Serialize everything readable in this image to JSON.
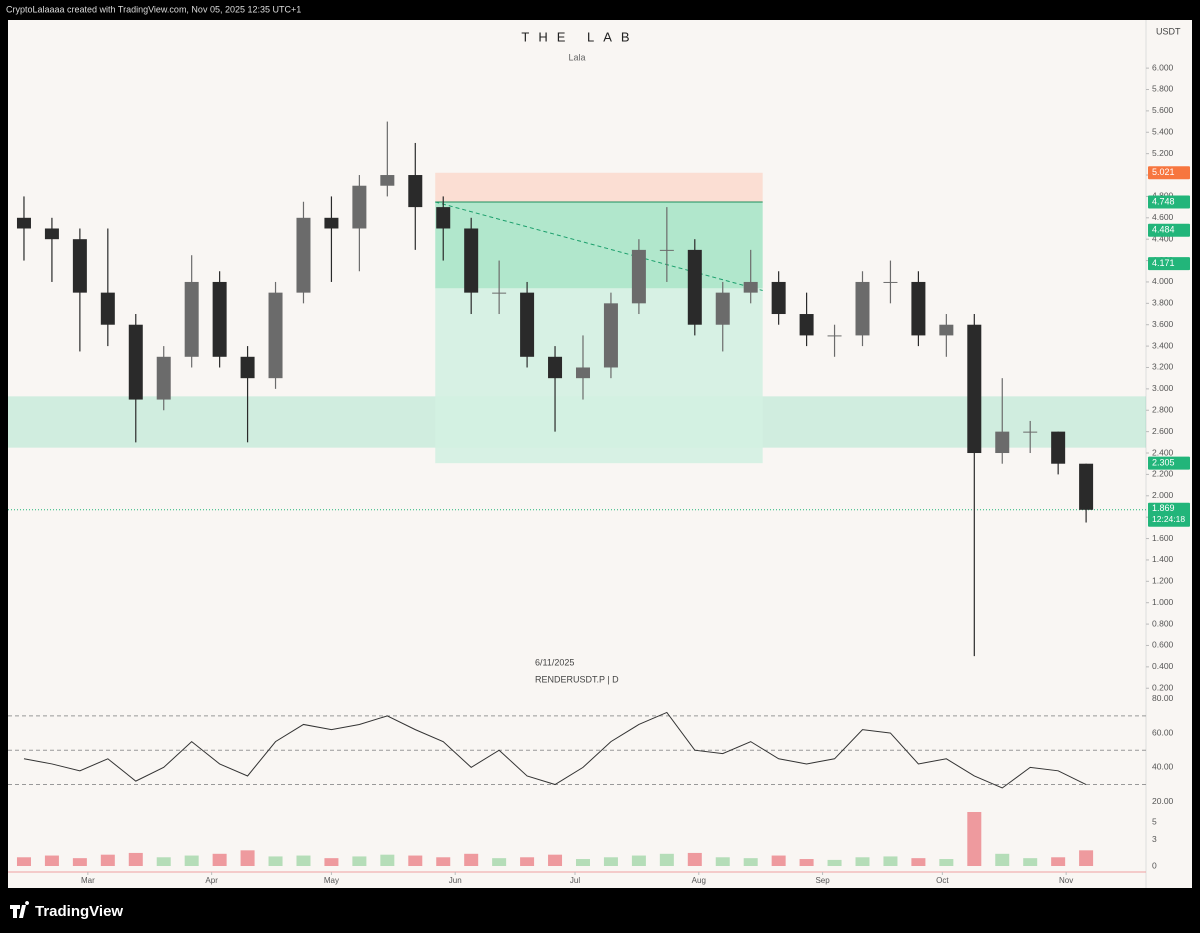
{
  "chart_data": {
    "type": "candlestick",
    "header": "CryptoLalaaaa created with TradingView.com, Nov 05, 2025 12:35 UTC+1",
    "title": "THE LAB",
    "subtitle": "Lala",
    "date_label": "6/11/2025",
    "symbol_label": "RENDERUSDT.P | D",
    "currency": "USDT",
    "brand": "TradingView",
    "x": [
      3,
      10,
      17,
      24,
      31,
      38,
      45,
      52,
      59,
      66,
      73,
      80,
      87,
      94,
      101,
      108,
      115,
      122,
      129,
      136,
      143,
      150,
      157,
      164,
      171,
      178,
      185,
      192,
      199,
      206,
      213,
      220,
      227,
      234,
      241,
      248,
      255,
      262,
      269
    ],
    "open": [
      4.6,
      4.5,
      4.4,
      3.9,
      3.6,
      2.9,
      3.3,
      4.0,
      3.3,
      3.1,
      3.9,
      4.6,
      4.5,
      4.9,
      5.0,
      4.7,
      4.5,
      3.9,
      3.9,
      3.3,
      3.1,
      3.2,
      3.8,
      4.3,
      4.3,
      3.6,
      3.9,
      4.0,
      3.7,
      3.5,
      3.5,
      4.0,
      4.0,
      3.5,
      3.6,
      2.4,
      2.6,
      2.6,
      2.3
    ],
    "high": [
      4.8,
      4.6,
      4.5,
      4.5,
      3.7,
      3.4,
      4.25,
      4.1,
      3.4,
      4.0,
      4.75,
      4.8,
      5.0,
      5.5,
      5.3,
      4.8,
      4.6,
      4.2,
      4.0,
      3.4,
      3.5,
      3.9,
      4.4,
      4.7,
      4.4,
      4.0,
      4.3,
      4.1,
      3.9,
      3.6,
      4.1,
      4.2,
      4.1,
      3.7,
      3.7,
      3.1,
      2.7,
      2.6,
      2.3
    ],
    "low": [
      4.2,
      4.0,
      3.35,
      3.4,
      2.5,
      2.8,
      3.2,
      3.2,
      2.5,
      3.0,
      3.8,
      4.0,
      4.1,
      4.8,
      4.3,
      4.2,
      3.7,
      3.7,
      3.2,
      2.6,
      2.9,
      3.1,
      3.7,
      4.0,
      3.5,
      3.35,
      3.8,
      3.6,
      3.4,
      3.3,
      3.4,
      3.8,
      3.4,
      3.3,
      0.5,
      2.3,
      2.4,
      2.2,
      1.75
    ],
    "close": [
      4.5,
      4.4,
      3.9,
      3.6,
      2.9,
      3.3,
      4.0,
      3.3,
      3.1,
      3.9,
      4.6,
      4.5,
      4.9,
      5.0,
      4.7,
      4.5,
      3.9,
      3.9,
      3.3,
      3.1,
      3.2,
      3.8,
      4.3,
      4.3,
      3.6,
      3.9,
      4.0,
      3.7,
      3.5,
      3.5,
      4.0,
      4.0,
      3.5,
      3.6,
      2.4,
      2.6,
      2.6,
      2.3,
      1.869
    ],
    "up_color": "#6b6b6b",
    "down_color": "#2a2a2a",
    "xlim": [
      -1,
      284
    ],
    "xticks": [
      {
        "value": 19,
        "label": "Mar"
      },
      {
        "value": 50,
        "label": "Apr"
      },
      {
        "value": 80,
        "label": "May"
      },
      {
        "value": 111,
        "label": "Jun"
      },
      {
        "value": 141,
        "label": "Jul"
      },
      {
        "value": 172,
        "label": "Aug"
      },
      {
        "value": 203,
        "label": "Sep"
      },
      {
        "value": 233,
        "label": "Oct"
      },
      {
        "value": 264,
        "label": "Nov"
      }
    ],
    "ylim": [
      0.09,
      6.45
    ],
    "yticks": [
      {
        "value": 0.2,
        "label": "0.200"
      },
      {
        "value": 0.4,
        "label": "0.400"
      },
      {
        "value": 0.6,
        "label": "0.600"
      },
      {
        "value": 0.8,
        "label": "0.800"
      },
      {
        "value": 1.0,
        "label": "1.000"
      },
      {
        "value": 1.2,
        "label": "1.200"
      },
      {
        "value": 1.4,
        "label": "1.400"
      },
      {
        "value": 1.6,
        "label": "1.600"
      },
      {
        "value": 1.8,
        "label": "1.800"
      },
      {
        "value": 2.0,
        "label": "2.000"
      },
      {
        "value": 2.2,
        "label": "2.200"
      },
      {
        "value": 2.4,
        "label": "2.400"
      },
      {
        "value": 2.6,
        "label": "2.600"
      },
      {
        "value": 2.8,
        "label": "2.800"
      },
      {
        "value": 3.0,
        "label": "3.000"
      },
      {
        "value": 3.2,
        "label": "3.200"
      },
      {
        "value": 3.4,
        "label": "3.400"
      },
      {
        "value": 3.6,
        "label": "3.600"
      },
      {
        "value": 3.8,
        "label": "3.800"
      },
      {
        "value": 4.0,
        "label": "4.000"
      },
      {
        "value": 4.2,
        "label": "4.200"
      },
      {
        "value": 4.4,
        "label": "4.400"
      },
      {
        "value": 4.6,
        "label": "4.600"
      },
      {
        "value": 4.8,
        "label": "4.800"
      },
      {
        "value": 5.0,
        "label": "5.000"
      },
      {
        "value": 5.2,
        "label": "5.200"
      },
      {
        "value": 5.4,
        "label": "5.400"
      },
      {
        "value": 5.6,
        "label": "5.600"
      },
      {
        "value": 5.8,
        "label": "5.800"
      },
      {
        "value": 6.0,
        "label": "6.000"
      }
    ],
    "zones": [
      {
        "low": 2.45,
        "high": 2.93,
        "color": "#2ecc8f"
      }
    ],
    "position": {
      "start": 106,
      "end": 188,
      "stop": 5.021,
      "entry": 4.748,
      "reached": 3.94,
      "target": 2.305,
      "end_price": 3.92,
      "stop_color": "#fcd9cc",
      "profit_color": "#a8e6c8",
      "target_color": "#d3f1e2"
    },
    "price_labels": [
      {
        "value": 5.021,
        "color": "#f7763f"
      },
      {
        "value": 4.748,
        "color": "#22b57a"
      },
      {
        "value": 4.484,
        "color": "#22b57a"
      },
      {
        "value": 4.171,
        "color": "#22b57a"
      },
      {
        "value": 2.305,
        "color": "#22b57a"
      }
    ],
    "last_price": {
      "value": 1.869,
      "countdown": "12:24:18",
      "color": "#22b57a"
    },
    "rsi": {
      "values": [
        45,
        42,
        38,
        45,
        32,
        40,
        55,
        42,
        35,
        55,
        65,
        62,
        65,
        70,
        62,
        55,
        40,
        50,
        35,
        30,
        40,
        55,
        65,
        72,
        50,
        48,
        55,
        45,
        42,
        45,
        62,
        60,
        42,
        45,
        35,
        28,
        40,
        38,
        30
      ],
      "color": "#333333",
      "ylim": [
        14,
        81
      ],
      "yticks": [
        {
          "value": 80,
          "label": "80.00"
        },
        {
          "value": 60,
          "label": "60.00"
        },
        {
          "value": 40,
          "label": "40.00"
        },
        {
          "value": 20,
          "label": "20.00"
        }
      ],
      "bands": [
        70,
        50,
        30
      ]
    },
    "volume": {
      "values": [
        1.0,
        1.2,
        0.9,
        1.3,
        1.5,
        1.0,
        1.2,
        1.4,
        1.8,
        1.1,
        1.2,
        0.9,
        1.1,
        1.3,
        1.2,
        1.0,
        1.4,
        0.9,
        1.0,
        1.3,
        0.8,
        1.0,
        1.2,
        1.4,
        1.5,
        1.0,
        0.9,
        1.2,
        0.8,
        0.7,
        1.0,
        1.1,
        0.9,
        0.8,
        6.2,
        1.4,
        0.9,
        1.0,
        1.8
      ],
      "up_color": "#b5ddb8",
      "down_color": "#ee9a9e",
      "ylim": [
        0,
        6.2
      ],
      "yticks": [
        0,
        3,
        5
      ]
    }
  }
}
